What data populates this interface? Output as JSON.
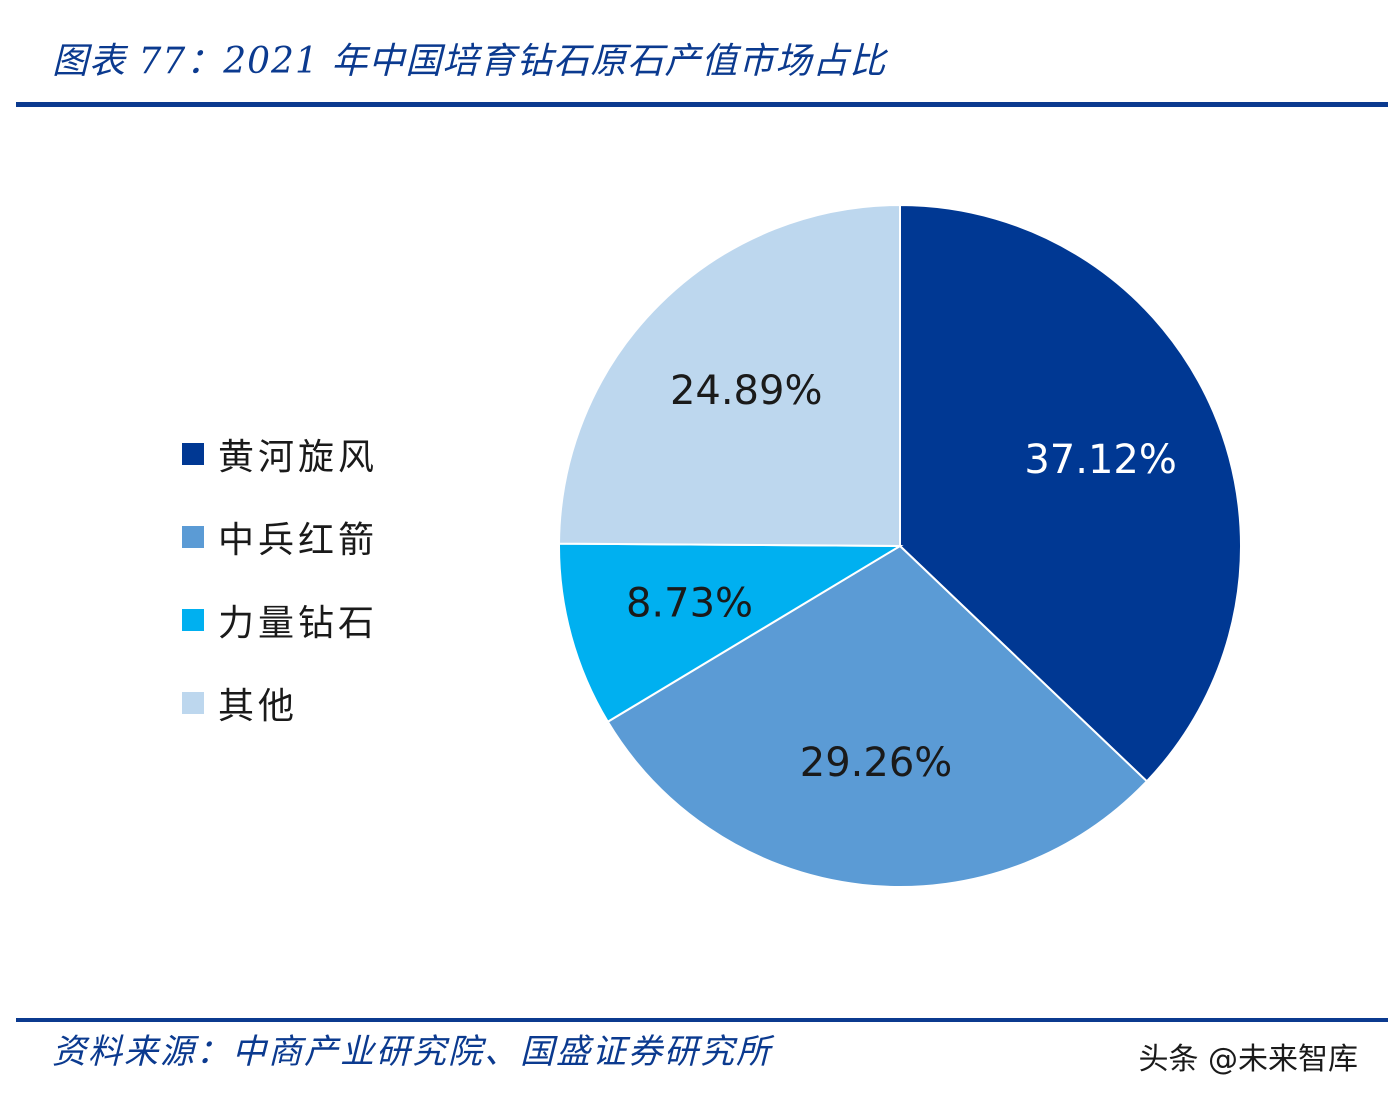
{
  "title": "图表 77：2021 年中国培育钻石原石产值市场占比",
  "source": "资料来源：中商产业研究院、国盛证券研究所",
  "watermark": "头条 @未来智库",
  "colors": {
    "accent": "#0b3a8f"
  },
  "chart_data": {
    "type": "pie",
    "title": "图表 77：2021 年中国培育钻石原石产值市场占比",
    "legend_position": "left",
    "slices": [
      {
        "name": "黄河旋风",
        "value": 37.12,
        "label": "37.12%",
        "color": "#003893",
        "label_color": "#ffffff"
      },
      {
        "name": "中兵红箭",
        "value": 29.26,
        "label": "29.26%",
        "color": "#5b9bd5",
        "label_color": "#1a1a1a"
      },
      {
        "name": "力量钻石",
        "value": 8.73,
        "label": "8.73%",
        "color": "#00b0f0",
        "label_color": "#1a1a1a"
      },
      {
        "name": "其他",
        "value": 24.89,
        "label": "24.89%",
        "color": "#bdd7ee",
        "label_color": "#1a1a1a"
      }
    ]
  }
}
